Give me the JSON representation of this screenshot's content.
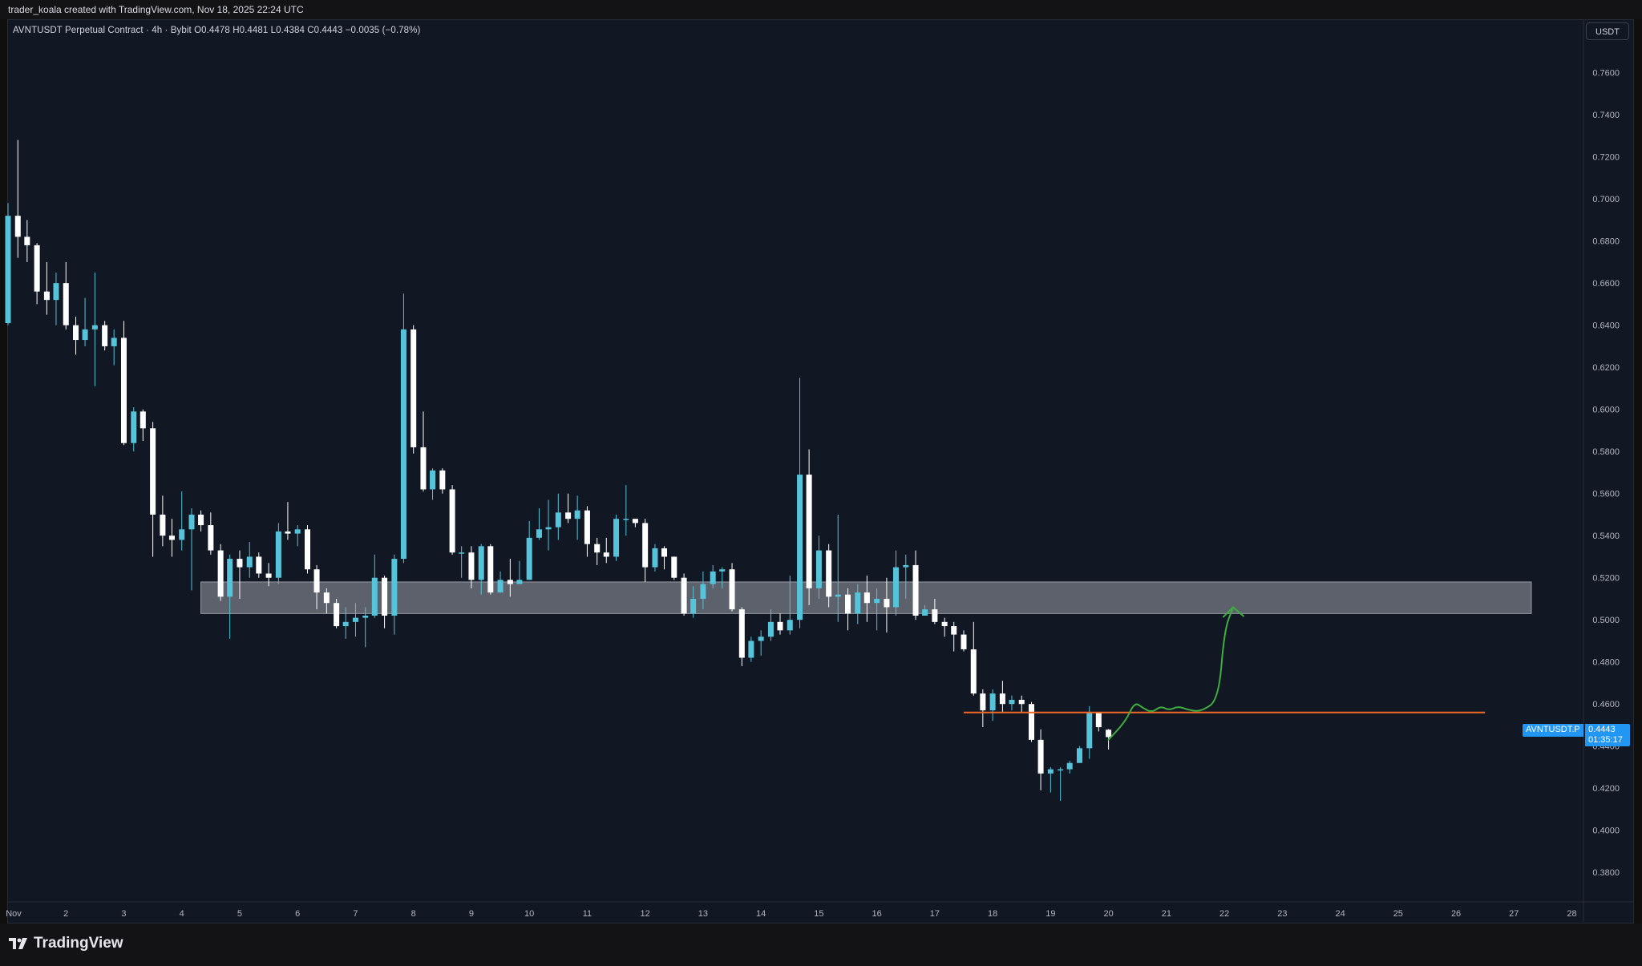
{
  "header": {
    "created_text": "trader_koala created with TradingView.com, Nov 18, 2025 22:24 UTC"
  },
  "legend": {
    "text": "AVNTUSDT Perpetual Contract · 4h · Bybit  O0.4478  H0.4481  L0.4384  C0.4443  −0.0035 (−0.78%)"
  },
  "currency_button": "USDT",
  "last_price": {
    "symbol": "AVNTUSDT.P",
    "value": "0.4443",
    "countdown": "01:35:17"
  },
  "brand": {
    "name": "TradingView"
  },
  "colors": {
    "background": "#121724",
    "up_candle": "#55c3d9",
    "down_candle": "#ffffff",
    "zone": "#6b6e78",
    "support_line": "#f06a24",
    "projection": "#3fae3f",
    "price_tag": "#2196f3"
  },
  "chart_data": {
    "type": "candlestick",
    "timeframe": "4h",
    "symbol": "AVNTUSDT",
    "y_tick_labels": [
      "0.7600",
      "0.7400",
      "0.7200",
      "0.7000",
      "0.6800",
      "0.6600",
      "0.6400",
      "0.6200",
      "0.6000",
      "0.5800",
      "0.5600",
      "0.5400",
      "0.5200",
      "0.5000",
      "0.4800",
      "0.4600",
      "0.4400",
      "0.4200",
      "0.4000",
      "0.3800"
    ],
    "ylim": [
      0.366,
      0.785
    ],
    "x_tick_labels": [
      "Nov",
      "2",
      "3",
      "4",
      "5",
      "6",
      "7",
      "8",
      "9",
      "10",
      "11",
      "12",
      "13",
      "14",
      "15",
      "16",
      "17",
      "18",
      "19",
      "20",
      "21",
      "22",
      "23",
      "24",
      "25",
      "26",
      "27",
      "28"
    ],
    "xlim_days": [
      1,
      28.2
    ],
    "candles": [
      [
        1.0,
        0.641,
        0.692,
        0.64,
        0.698
      ],
      [
        1.17,
        0.692,
        0.682,
        0.672,
        0.728
      ],
      [
        1.33,
        0.682,
        0.678,
        0.67,
        0.69
      ],
      [
        1.5,
        0.678,
        0.656,
        0.65,
        0.679
      ],
      [
        1.67,
        0.656,
        0.652,
        0.645,
        0.67
      ],
      [
        1.83,
        0.652,
        0.66,
        0.64,
        0.665
      ],
      [
        2.0,
        0.66,
        0.64,
        0.638,
        0.67
      ],
      [
        2.17,
        0.64,
        0.633,
        0.626,
        0.644
      ],
      [
        2.33,
        0.633,
        0.638,
        0.63,
        0.653
      ],
      [
        2.5,
        0.638,
        0.64,
        0.611,
        0.665
      ],
      [
        2.67,
        0.64,
        0.63,
        0.628,
        0.642
      ],
      [
        2.83,
        0.63,
        0.634,
        0.621,
        0.638
      ],
      [
        3.0,
        0.634,
        0.584,
        0.583,
        0.642
      ],
      [
        3.17,
        0.584,
        0.599,
        0.58,
        0.601
      ],
      [
        3.33,
        0.599,
        0.591,
        0.585,
        0.6
      ],
      [
        3.5,
        0.591,
        0.55,
        0.53,
        0.594
      ],
      [
        3.67,
        0.55,
        0.54,
        0.535,
        0.559
      ],
      [
        3.83,
        0.54,
        0.538,
        0.53,
        0.548
      ],
      [
        4.0,
        0.538,
        0.543,
        0.533,
        0.561
      ],
      [
        4.17,
        0.543,
        0.55,
        0.514,
        0.553
      ],
      [
        4.33,
        0.55,
        0.545,
        0.542,
        0.552
      ],
      [
        4.5,
        0.545,
        0.533,
        0.531,
        0.551
      ],
      [
        4.67,
        0.533,
        0.511,
        0.509,
        0.536
      ],
      [
        4.83,
        0.511,
        0.529,
        0.491,
        0.531
      ],
      [
        5.0,
        0.529,
        0.525,
        0.51,
        0.533
      ],
      [
        5.17,
        0.525,
        0.53,
        0.52,
        0.537
      ],
      [
        5.33,
        0.53,
        0.522,
        0.52,
        0.532
      ],
      [
        5.5,
        0.522,
        0.52,
        0.516,
        0.527
      ],
      [
        5.67,
        0.52,
        0.542,
        0.517,
        0.546
      ],
      [
        5.83,
        0.542,
        0.541,
        0.538,
        0.556
      ],
      [
        6.0,
        0.541,
        0.543,
        0.535,
        0.545
      ],
      [
        6.17,
        0.543,
        0.524,
        0.522,
        0.545
      ],
      [
        6.33,
        0.524,
        0.513,
        0.505,
        0.526
      ],
      [
        6.5,
        0.513,
        0.508,
        0.503,
        0.515
      ],
      [
        6.67,
        0.508,
        0.497,
        0.496,
        0.51
      ],
      [
        6.83,
        0.497,
        0.499,
        0.491,
        0.506
      ],
      [
        7.0,
        0.499,
        0.501,
        0.492,
        0.508
      ],
      [
        7.17,
        0.501,
        0.502,
        0.487,
        0.506
      ],
      [
        7.33,
        0.502,
        0.52,
        0.501,
        0.531
      ],
      [
        7.5,
        0.52,
        0.502,
        0.496,
        0.521
      ],
      [
        7.67,
        0.502,
        0.529,
        0.493,
        0.531
      ],
      [
        7.83,
        0.529,
        0.638,
        0.527,
        0.655
      ],
      [
        8.0,
        0.638,
        0.582,
        0.579,
        0.64
      ],
      [
        8.17,
        0.582,
        0.562,
        0.561,
        0.599
      ],
      [
        8.33,
        0.562,
        0.571,
        0.557,
        0.572
      ],
      [
        8.5,
        0.571,
        0.562,
        0.56,
        0.572
      ],
      [
        8.67,
        0.562,
        0.532,
        0.531,
        0.564
      ],
      [
        8.83,
        0.532,
        0.532,
        0.52,
        0.535
      ],
      [
        9.0,
        0.532,
        0.519,
        0.515,
        0.535
      ],
      [
        9.17,
        0.519,
        0.535,
        0.512,
        0.536
      ],
      [
        9.33,
        0.535,
        0.513,
        0.512,
        0.536
      ],
      [
        9.5,
        0.513,
        0.519,
        0.513,
        0.523
      ],
      [
        9.67,
        0.519,
        0.517,
        0.511,
        0.529
      ],
      [
        9.83,
        0.517,
        0.519,
        0.517,
        0.528
      ],
      [
        10.0,
        0.519,
        0.539,
        0.519,
        0.547
      ],
      [
        10.17,
        0.539,
        0.543,
        0.538,
        0.553
      ],
      [
        10.33,
        0.543,
        0.544,
        0.533,
        0.557
      ],
      [
        10.5,
        0.544,
        0.551,
        0.538,
        0.56
      ],
      [
        10.67,
        0.551,
        0.548,
        0.546,
        0.56
      ],
      [
        10.83,
        0.548,
        0.552,
        0.538,
        0.559
      ],
      [
        11.0,
        0.552,
        0.536,
        0.53,
        0.554
      ],
      [
        11.17,
        0.536,
        0.532,
        0.526,
        0.539
      ],
      [
        11.33,
        0.532,
        0.53,
        0.527,
        0.539
      ],
      [
        11.5,
        0.53,
        0.548,
        0.528,
        0.55
      ],
      [
        11.67,
        0.548,
        0.548,
        0.54,
        0.564
      ],
      [
        11.83,
        0.548,
        0.546,
        0.544,
        0.547
      ],
      [
        12.0,
        0.546,
        0.525,
        0.518,
        0.548
      ],
      [
        12.17,
        0.525,
        0.534,
        0.523,
        0.536
      ],
      [
        12.33,
        0.534,
        0.53,
        0.524,
        0.535
      ],
      [
        12.5,
        0.53,
        0.52,
        0.519,
        0.53
      ],
      [
        12.67,
        0.52,
        0.503,
        0.502,
        0.522
      ],
      [
        12.83,
        0.503,
        0.51,
        0.501,
        0.516
      ],
      [
        13.0,
        0.51,
        0.517,
        0.505,
        0.523
      ],
      [
        13.17,
        0.517,
        0.523,
        0.515,
        0.526
      ],
      [
        13.33,
        0.523,
        0.524,
        0.515,
        0.525
      ],
      [
        13.5,
        0.524,
        0.505,
        0.504,
        0.527
      ],
      [
        13.67,
        0.505,
        0.482,
        0.478,
        0.506
      ],
      [
        13.83,
        0.482,
        0.49,
        0.48,
        0.492
      ],
      [
        14.0,
        0.49,
        0.492,
        0.483,
        0.495
      ],
      [
        14.17,
        0.492,
        0.499,
        0.49,
        0.505
      ],
      [
        14.33,
        0.499,
        0.495,
        0.493,
        0.503
      ],
      [
        14.5,
        0.495,
        0.5,
        0.493,
        0.521
      ],
      [
        14.67,
        0.5,
        0.569,
        0.496,
        0.615
      ],
      [
        14.83,
        0.569,
        0.515,
        0.507,
        0.581
      ],
      [
        15.0,
        0.515,
        0.533,
        0.51,
        0.54
      ],
      [
        15.17,
        0.533,
        0.511,
        0.506,
        0.536
      ],
      [
        15.33,
        0.511,
        0.512,
        0.499,
        0.55
      ],
      [
        15.5,
        0.512,
        0.503,
        0.495,
        0.515
      ],
      [
        15.67,
        0.503,
        0.513,
        0.498,
        0.517
      ],
      [
        15.83,
        0.513,
        0.508,
        0.499,
        0.521
      ],
      [
        16.0,
        0.508,
        0.51,
        0.495,
        0.515
      ],
      [
        16.17,
        0.51,
        0.506,
        0.494,
        0.52
      ],
      [
        16.33,
        0.506,
        0.525,
        0.502,
        0.533
      ],
      [
        16.5,
        0.525,
        0.526,
        0.51,
        0.531
      ],
      [
        16.67,
        0.526,
        0.502,
        0.5,
        0.533
      ],
      [
        16.83,
        0.502,
        0.505,
        0.502,
        0.507
      ],
      [
        17.0,
        0.505,
        0.499,
        0.498,
        0.51
      ],
      [
        17.17,
        0.499,
        0.497,
        0.492,
        0.501
      ],
      [
        17.33,
        0.497,
        0.493,
        0.485,
        0.499
      ],
      [
        17.5,
        0.493,
        0.486,
        0.485,
        0.495
      ],
      [
        17.67,
        0.486,
        0.465,
        0.464,
        0.499
      ],
      [
        17.83,
        0.465,
        0.457,
        0.449,
        0.467
      ],
      [
        18.0,
        0.457,
        0.465,
        0.452,
        0.467
      ],
      [
        18.17,
        0.465,
        0.46,
        0.456,
        0.471
      ],
      [
        18.33,
        0.46,
        0.462,
        0.457,
        0.464
      ],
      [
        18.5,
        0.462,
        0.46,
        0.456,
        0.464
      ],
      [
        18.67,
        0.46,
        0.443,
        0.442,
        0.461
      ],
      [
        18.83,
        0.443,
        0.427,
        0.419,
        0.448
      ],
      [
        19.0,
        0.427,
        0.429,
        0.418,
        0.43
      ],
      [
        19.17,
        0.429,
        0.429,
        0.414,
        0.43
      ],
      [
        19.33,
        0.429,
        0.432,
        0.427,
        0.433
      ],
      [
        19.5,
        0.432,
        0.439,
        0.432,
        0.44
      ],
      [
        19.67,
        0.439,
        0.456,
        0.434,
        0.459
      ],
      [
        19.83,
        0.456,
        0.449,
        0.447,
        0.456
      ],
      [
        20.0,
        0.4478,
        0.4443,
        0.4384,
        0.4481
      ]
    ],
    "candle_format": [
      "time_day",
      "open",
      "close",
      "low",
      "high"
    ],
    "annotations": {
      "zone": {
        "day_from": 4.33,
        "day_to": 27.3,
        "price_low": 0.503,
        "price_high": 0.518
      },
      "support_line": {
        "day_from": 17.5,
        "day_to": 26.5,
        "price": 0.456
      },
      "projection_path": [
        [
          20.0,
          0.443
        ],
        [
          20.3,
          0.452
        ],
        [
          20.45,
          0.461
        ],
        [
          20.6,
          0.458
        ],
        [
          20.75,
          0.456
        ],
        [
          20.9,
          0.459
        ],
        [
          21.05,
          0.457
        ],
        [
          21.2,
          0.459
        ],
        [
          21.4,
          0.457
        ],
        [
          21.6,
          0.4565
        ],
        [
          21.9,
          0.462
        ],
        [
          22.0,
          0.495
        ],
        [
          22.15,
          0.506
        ]
      ]
    }
  }
}
